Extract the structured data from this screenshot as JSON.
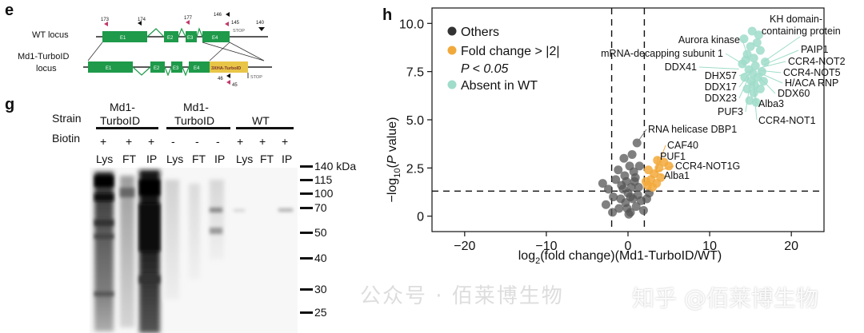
{
  "panel_e": {
    "letter": "e",
    "wt_label": "WT locus",
    "md1_label_line1": "Md1-TurboID",
    "md1_label_line2": "locus",
    "exons": [
      "E1",
      "E2",
      "E3",
      "E4"
    ],
    "tag_label": "3XHA-TurboID",
    "markers": [
      "173",
      "174",
      "177",
      "146",
      "145",
      "140",
      "46",
      "45"
    ],
    "stop_labels": [
      "STOP",
      "STOP"
    ],
    "colors": {
      "exon": "#1e9a4a",
      "tag": "#e8c547",
      "primer_black": "#111111",
      "primer_pink": "#c0396b"
    }
  },
  "panel_g": {
    "letter": "g",
    "strain_label": "Strain",
    "biotin_label": "Biotin",
    "groups": [
      {
        "line1": "Md1-",
        "line2": "TurboID",
        "biotin": [
          "+",
          "+",
          "+"
        ],
        "lanes": [
          "Lys",
          "FT",
          "IP"
        ]
      },
      {
        "line1": "Md1-",
        "line2": "TurboID",
        "biotin": [
          "-",
          "-",
          "-"
        ],
        "lanes": [
          "Lys",
          "FT",
          "IP"
        ]
      },
      {
        "line1": "WT",
        "line2": "",
        "biotin": [
          "+",
          "+",
          "+"
        ],
        "lanes": [
          "Lys",
          "FT",
          "IP"
        ]
      }
    ],
    "markers": [
      "140 kDa",
      "115",
      "100",
      "70",
      "50",
      "40",
      "30",
      "25"
    ]
  },
  "panel_h": {
    "letter": "h",
    "chart_data": {
      "type": "scatter",
      "xlabel": "log2(fold change)(Md1-TurboID/WT)",
      "ylabel": "-log10(P value)",
      "xlim": [
        -24,
        24
      ],
      "ylim": [
        -0.8,
        10.8
      ],
      "xticks": [
        -20,
        -10,
        0,
        10,
        20
      ],
      "yticks": [
        0,
        2.5,
        5.0,
        7.5,
        10.0
      ],
      "ytick_labels": [
        "0",
        "2.5",
        "5.0",
        "7.5",
        "10.0"
      ],
      "thresholds": {
        "x": [
          -2,
          2
        ],
        "y": 1.3
      },
      "legend": [
        {
          "name": "Others",
          "color": "#333333"
        },
        {
          "name": "Fold change > |2|",
          "name2": "P < 0.05",
          "color": "#f2a93b"
        },
        {
          "name": "Absent in WT",
          "color": "#9fdcc9"
        }
      ],
      "annotations": [
        {
          "text": "KH domain-",
          "text2": "containing protein"
        },
        {
          "text": "Aurora kinase"
        },
        {
          "text": "PAIP1"
        },
        {
          "text": "mRNA-decapping subunit 1"
        },
        {
          "text": "CCR4-NOT2"
        },
        {
          "text": "DDX41"
        },
        {
          "text": "CCR4-NOT5"
        },
        {
          "text": "DHX57"
        },
        {
          "text": "H/ACA RNP"
        },
        {
          "text": "DDX17"
        },
        {
          "text": "DDX60"
        },
        {
          "text": "DDX23"
        },
        {
          "text": "PUF3"
        },
        {
          "text": "Alba3"
        },
        {
          "text": "CCR4-NOT1"
        },
        {
          "text": "RNA helicase DBP1"
        },
        {
          "text": "CAF40"
        },
        {
          "text": "PUF1"
        },
        {
          "text": "CCR4-NOT1G"
        },
        {
          "text": "Alba1"
        }
      ],
      "series": [
        {
          "name": "Others",
          "points": [
            [
              0.5,
              3.2
            ],
            [
              0.2,
              2.6
            ],
            [
              -0.4,
              2.1
            ],
            [
              0.9,
              2.0
            ],
            [
              -0.8,
              1.6
            ],
            [
              1.3,
              1.5
            ],
            [
              -1.5,
              1.9
            ],
            [
              0.0,
              1.2
            ],
            [
              0.6,
              0.9
            ],
            [
              -0.3,
              0.7
            ],
            [
              1.0,
              0.5
            ],
            [
              -1.1,
              0.4
            ],
            [
              0.3,
              0.2
            ],
            [
              1.6,
              0.8
            ],
            [
              -1.8,
              1.0
            ],
            [
              -0.6,
              1.4
            ],
            [
              0.8,
              1.8
            ],
            [
              1.4,
              2.6
            ],
            [
              -1.2,
              2.4
            ],
            [
              0.1,
              0.1
            ],
            [
              -0.1,
              0.4
            ],
            [
              0.4,
              1.5
            ],
            [
              -0.9,
              0.9
            ],
            [
              1.2,
              1.1
            ],
            [
              -2.4,
              1.4
            ],
            [
              -3.1,
              1.7
            ],
            [
              -2.7,
              0.6
            ],
            [
              2.3,
              0.9
            ],
            [
              2.6,
              1.2
            ],
            [
              1.9,
              0.3
            ],
            [
              -1.9,
              0.2
            ],
            [
              0.7,
              2.3
            ],
            [
              -0.2,
              1.8
            ],
            [
              1.1,
              3.8
            ],
            [
              -0.5,
              3.0
            ],
            [
              0.3,
              1.0
            ]
          ]
        },
        {
          "name": "Fold change > |2|",
          "points": [
            [
              2.4,
              1.6
            ],
            [
              2.8,
              1.9
            ],
            [
              3.2,
              2.2
            ],
            [
              3.8,
              2.5
            ],
            [
              4.4,
              2.8
            ],
            [
              3.0,
              1.5
            ],
            [
              2.5,
              2.4
            ],
            [
              4.0,
              2.0
            ],
            [
              3.5,
              1.7
            ],
            [
              5.0,
              2.6
            ],
            [
              2.2,
              1.8
            ],
            [
              3.6,
              2.9
            ]
          ]
        },
        {
          "name": "Absent in WT",
          "points": [
            [
              14.2,
              9.2
            ],
            [
              15.0,
              8.8
            ],
            [
              15.8,
              9.0
            ],
            [
              14.6,
              8.4
            ],
            [
              15.4,
              8.2
            ],
            [
              16.2,
              8.6
            ],
            [
              14.0,
              7.9
            ],
            [
              14.8,
              7.6
            ],
            [
              15.6,
              7.8
            ],
            [
              16.4,
              7.5
            ],
            [
              14.3,
              7.2
            ],
            [
              15.1,
              7.0
            ],
            [
              15.9,
              7.2
            ],
            [
              16.6,
              7.0
            ],
            [
              14.6,
              6.6
            ],
            [
              15.4,
              6.4
            ],
            [
              16.2,
              6.6
            ],
            [
              14.9,
              6.0
            ],
            [
              15.7,
              5.9
            ],
            [
              15.2,
              9.6
            ],
            [
              16.0,
              9.4
            ],
            [
              14.4,
              8.1
            ],
            [
              15.3,
              7.4
            ],
            [
              16.8,
              8.0
            ],
            [
              15.5,
              6.8
            ]
          ]
        }
      ]
    }
  },
  "watermark": {
    "text1": "公众号 · 佰莱博生物",
    "text2": "知乎 @佰莱博生物"
  }
}
